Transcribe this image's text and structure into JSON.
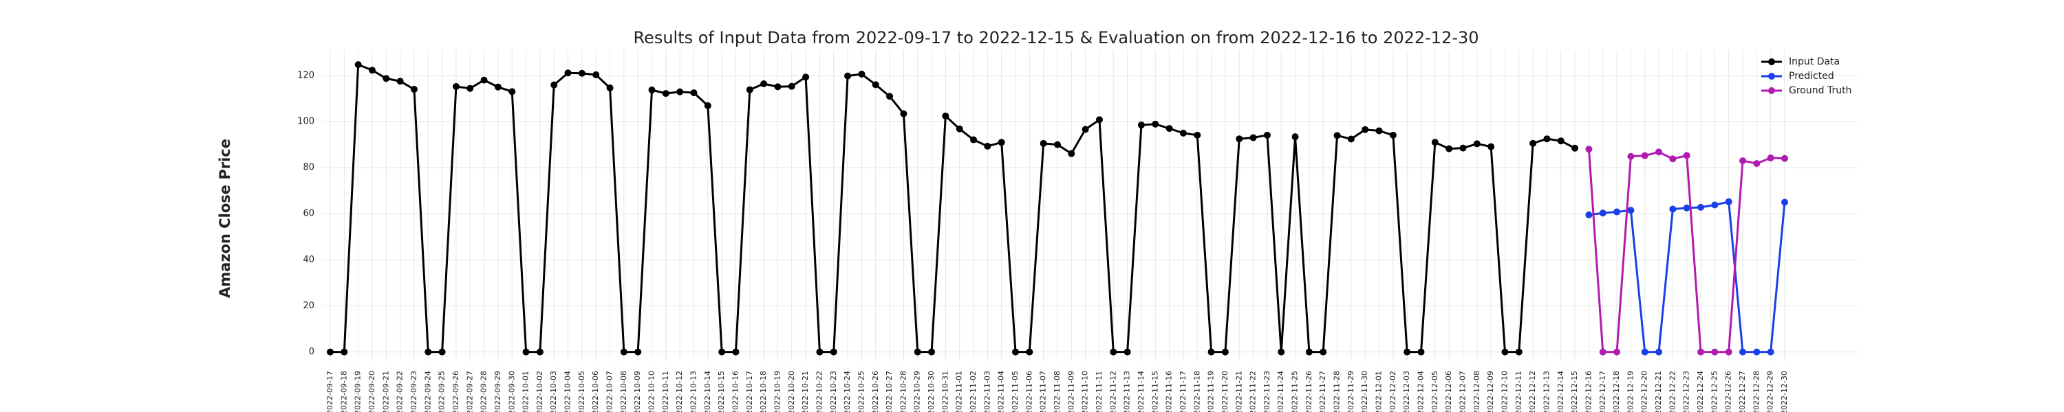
{
  "chart_data": {
    "type": "line",
    "title": "Results of Input Data from 2022-09-17 to 2022-12-15 & Evaluation on from 2022-12-16 to 2022-12-30",
    "y_label": "Amazon Close Price",
    "categories": [
      "2022-09-17",
      "2022-09-18",
      "2022-09-19",
      "2022-09-20",
      "2022-09-21",
      "2022-09-22",
      "2022-09-23",
      "2022-09-24",
      "2022-09-25",
      "2022-09-26",
      "2022-09-27",
      "2022-09-28",
      "2022-09-29",
      "2022-09-30",
      "2022-10-01",
      "2022-10-02",
      "2022-10-03",
      "2022-10-04",
      "2022-10-05",
      "2022-10-06",
      "2022-10-07",
      "2022-10-08",
      "2022-10-09",
      "2022-10-10",
      "2022-10-11",
      "2022-10-12",
      "2022-10-13",
      "2022-10-14",
      "2022-10-15",
      "2022-10-16",
      "2022-10-17",
      "2022-10-18",
      "2022-10-19",
      "2022-10-20",
      "2022-10-21",
      "2022-10-22",
      "2022-10-23",
      "2022-10-24",
      "2022-10-25",
      "2022-10-26",
      "2022-10-27",
      "2022-10-28",
      "2022-10-29",
      "2022-10-30",
      "2022-10-31",
      "2022-11-01",
      "2022-11-02",
      "2022-11-03",
      "2022-11-04",
      "2022-11-05",
      "2022-11-06",
      "2022-11-07",
      "2022-11-08",
      "2022-11-09",
      "2022-11-10",
      "2022-11-11",
      "2022-11-12",
      "2022-11-13",
      "2022-11-14",
      "2022-11-15",
      "2022-11-16",
      "2022-11-17",
      "2022-11-18",
      "2022-11-19",
      "2022-11-20",
      "2022-11-21",
      "2022-11-22",
      "2022-11-23",
      "2022-11-24",
      "2022-11-25",
      "2022-11-26",
      "2022-11-27",
      "2022-11-28",
      "2022-11-29",
      "2022-11-30",
      "2022-12-01",
      "2022-12-02",
      "2022-12-03",
      "2022-12-04",
      "2022-12-05",
      "2022-12-06",
      "2022-12-07",
      "2022-12-08",
      "2022-12-09",
      "2022-12-10",
      "2022-12-11",
      "2022-12-12",
      "2022-12-13",
      "2022-12-14",
      "2022-12-15",
      "2022-12-16",
      "2022-12-17",
      "2022-12-18",
      "2022-12-19",
      "2022-12-20",
      "2022-12-21",
      "2022-12-22",
      "2022-12-23",
      "2022-12-24",
      "2022-12-25",
      "2022-12-26",
      "2022-12-27",
      "2022-12-28",
      "2022-12-29",
      "2022-12-30"
    ],
    "series": [
      {
        "name": "Input Data",
        "color": "#000000",
        "values": [
          0,
          0,
          124.7,
          122.3,
          118.7,
          117.5,
          114.0,
          0,
          0,
          115.2,
          114.4,
          118.0,
          115.0,
          113.0,
          0,
          0,
          115.9,
          121.1,
          120.95,
          120.3,
          114.6,
          0,
          0,
          113.7,
          112.2,
          112.9,
          112.5,
          106.9,
          0,
          0,
          113.8,
          116.4,
          115.1,
          115.3,
          119.3,
          0,
          0,
          119.8,
          120.6,
          116.0,
          110.96,
          103.4,
          0,
          0,
          102.4,
          96.8,
          92.1,
          89.3,
          90.98,
          0,
          0,
          90.5,
          89.98,
          86.1,
          96.6,
          100.8,
          0,
          0,
          98.5,
          98.9,
          97.0,
          94.97,
          94.1,
          0,
          0,
          92.5,
          93.0,
          94.1,
          0,
          93.4,
          0,
          0,
          93.95,
          92.4,
          96.5,
          96.0,
          94.1,
          0,
          0,
          91.0,
          88.2,
          88.5,
          90.35,
          89.1,
          0,
          0,
          90.55,
          92.5,
          91.6,
          88.45,
          null,
          null,
          null,
          null,
          null,
          null,
          null,
          null,
          null,
          null,
          null,
          null,
          null,
          null,
          null
        ]
      },
      {
        "name": "Predicted",
        "color": "#1a3ee8",
        "values": [
          null,
          null,
          null,
          null,
          null,
          null,
          null,
          null,
          null,
          null,
          null,
          null,
          null,
          null,
          null,
          null,
          null,
          null,
          null,
          null,
          null,
          null,
          null,
          null,
          null,
          null,
          null,
          null,
          null,
          null,
          null,
          null,
          null,
          null,
          null,
          null,
          null,
          null,
          null,
          null,
          null,
          null,
          null,
          null,
          null,
          null,
          null,
          null,
          null,
          null,
          null,
          null,
          null,
          null,
          null,
          null,
          null,
          null,
          null,
          null,
          null,
          null,
          null,
          null,
          null,
          null,
          null,
          null,
          null,
          null,
          null,
          null,
          null,
          null,
          null,
          null,
          null,
          null,
          null,
          null,
          null,
          null,
          null,
          null,
          null,
          null,
          null,
          null,
          null,
          null,
          59.5,
          60.3,
          60.8,
          61.5,
          0,
          0,
          62.0,
          62.5,
          62.8,
          63.8,
          65.2,
          0,
          0,
          0,
          65.0
        ]
      },
      {
        "name": "Ground Truth",
        "color": "#b01cb0",
        "values": [
          null,
          null,
          null,
          null,
          null,
          null,
          null,
          null,
          null,
          null,
          null,
          null,
          null,
          null,
          null,
          null,
          null,
          null,
          null,
          null,
          null,
          null,
          null,
          null,
          null,
          null,
          null,
          null,
          null,
          null,
          null,
          null,
          null,
          null,
          null,
          null,
          null,
          null,
          null,
          null,
          null,
          null,
          null,
          null,
          null,
          null,
          null,
          null,
          null,
          null,
          null,
          null,
          null,
          null,
          null,
          null,
          null,
          null,
          null,
          null,
          null,
          null,
          null,
          null,
          null,
          null,
          null,
          null,
          null,
          null,
          null,
          null,
          null,
          null,
          null,
          null,
          null,
          null,
          null,
          null,
          null,
          null,
          null,
          null,
          null,
          null,
          null,
          null,
          null,
          null,
          88.0,
          0,
          0,
          84.9,
          85.2,
          86.8,
          83.8,
          85.25,
          0,
          0,
          0,
          83.0,
          81.8,
          84.2,
          84.0
        ]
      }
    ],
    "ylim": [
      -4,
      131
    ],
    "yticks": [
      0,
      20,
      40,
      60,
      80,
      100,
      120
    ],
    "grid": true,
    "legend": "upper right"
  }
}
